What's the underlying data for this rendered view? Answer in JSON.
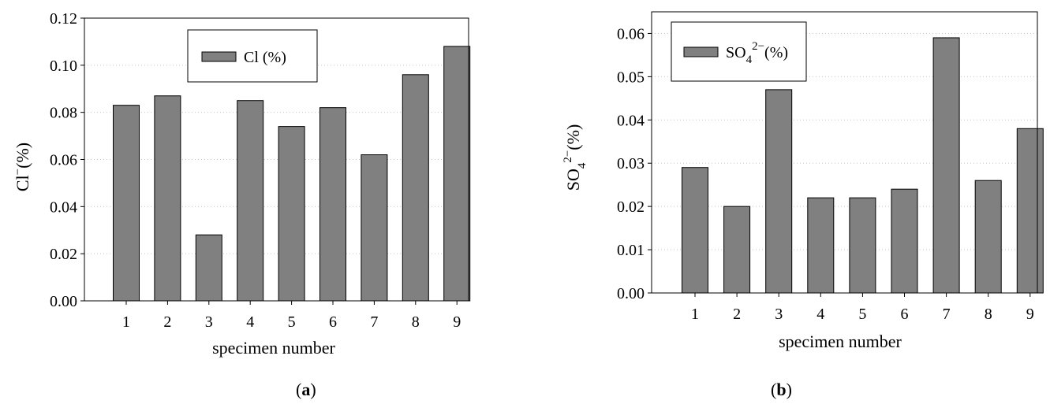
{
  "chart_data": [
    {
      "type": "bar",
      "panel": "a",
      "categories": [
        "1",
        "2",
        "3",
        "4",
        "5",
        "6",
        "7",
        "8",
        "9"
      ],
      "values": [
        0.083,
        0.087,
        0.028,
        0.085,
        0.074,
        0.082,
        0.062,
        0.096,
        0.108
      ],
      "xlabel": "specimen number",
      "ylabel_base": "Cl",
      "ylabel_sup": "−",
      "ylabel_unit": "(%)",
      "legend_label": "Cl (%)",
      "legend_position": "top-center",
      "ylim": [
        0,
        0.12
      ],
      "yticks": [
        "0.00",
        "0.02",
        "0.04",
        "0.06",
        "0.08",
        "0.10",
        "0.12"
      ],
      "grid": "horizontal-dotted",
      "bar_color": "#808080",
      "caption_letter": "a"
    },
    {
      "type": "bar",
      "panel": "b",
      "categories": [
        "1",
        "2",
        "3",
        "4",
        "5",
        "6",
        "7",
        "8",
        "9"
      ],
      "values": [
        0.029,
        0.02,
        0.047,
        0.022,
        0.022,
        0.024,
        0.059,
        0.026,
        0.038
      ],
      "xlabel": "specimen number",
      "ylabel_base": "SO",
      "ylabel_sub": "4",
      "ylabel_sup": "2−",
      "ylabel_unit": "(%)",
      "legend_base": "SO",
      "legend_sub": "4",
      "legend_sup": "2−",
      "legend_unit": "(%)",
      "legend_position": "top-left",
      "ylim": [
        0,
        0.065
      ],
      "yticks": [
        "0.00",
        "0.01",
        "0.02",
        "0.03",
        "0.04",
        "0.05",
        "0.06"
      ],
      "grid": "horizontal-dotted",
      "bar_color": "#808080",
      "caption_letter": "b"
    }
  ]
}
